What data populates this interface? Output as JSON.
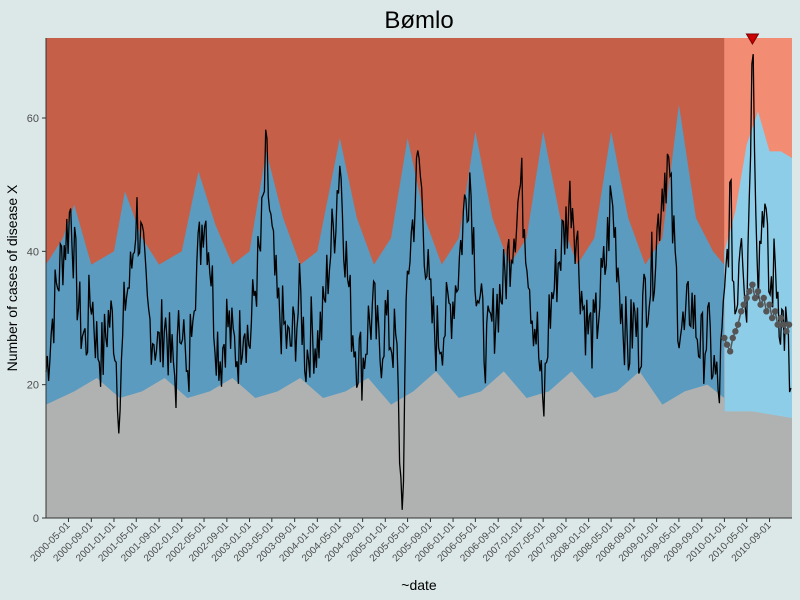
{
  "chart_data": {
    "type": "area",
    "title": "Bømlo",
    "xlabel": "~date",
    "ylabel": "Number of cases of disease X",
    "x_range": [
      "2000-01-01",
      "2010-12-31"
    ],
    "ylim": [
      0,
      72
    ],
    "y_ticks": [
      0,
      20,
      40,
      60
    ],
    "x_ticks": [
      "2000-05-01",
      "2000-09-01",
      "2001-01-01",
      "2001-05-01",
      "2001-09-01",
      "2002-01-01",
      "2002-05-01",
      "2002-09-01",
      "2003-01-01",
      "2003-05-01",
      "2003-09-01",
      "2004-01-01",
      "2004-05-01",
      "2004-09-01",
      "2005-01-01",
      "2005-05-01",
      "2005-09-01",
      "2006-01-01",
      "2006-05-01",
      "2006-09-01",
      "2007-01-01",
      "2007-05-01",
      "2007-09-01",
      "2008-01-01",
      "2008-05-01",
      "2008-09-01",
      "2009-01-01",
      "2009-05-01",
      "2009-09-01",
      "2010-01-01",
      "2010-05-01",
      "2010-09-01"
    ],
    "forecast_start": "2010-01-01",
    "forecast_end": "2010-12-31",
    "bands": {
      "baseline_low": [
        [
          "2000-01-01",
          17
        ],
        [
          "2000-06-01",
          19
        ],
        [
          "2000-10-01",
          21
        ],
        [
          "2001-02-01",
          18
        ],
        [
          "2001-06-01",
          19
        ],
        [
          "2001-10-01",
          21
        ],
        [
          "2002-02-01",
          18
        ],
        [
          "2002-06-01",
          19
        ],
        [
          "2002-10-01",
          21
        ],
        [
          "2003-02-01",
          18
        ],
        [
          "2003-06-01",
          19
        ],
        [
          "2003-10-01",
          21
        ],
        [
          "2004-02-01",
          18
        ],
        [
          "2004-06-01",
          19
        ],
        [
          "2004-10-01",
          21
        ],
        [
          "2005-02-01",
          17
        ],
        [
          "2005-06-01",
          19
        ],
        [
          "2005-10-01",
          22
        ],
        [
          "2006-02-01",
          18
        ],
        [
          "2006-06-01",
          19
        ],
        [
          "2006-10-01",
          22
        ],
        [
          "2007-02-01",
          18
        ],
        [
          "2007-06-01",
          19
        ],
        [
          "2007-10-01",
          22
        ],
        [
          "2008-02-01",
          18
        ],
        [
          "2008-06-01",
          19
        ],
        [
          "2008-10-01",
          22
        ],
        [
          "2009-02-01",
          17
        ],
        [
          "2009-06-01",
          19
        ],
        [
          "2009-10-01",
          20
        ],
        [
          "2009-12-31",
          18
        ],
        [
          "2010-01-01",
          16
        ],
        [
          "2010-06-01",
          16
        ],
        [
          "2010-12-31",
          15
        ]
      ],
      "baseline_high": [
        [
          "2000-01-01",
          38
        ],
        [
          "2000-04-01",
          42
        ],
        [
          "2000-06-01",
          47
        ],
        [
          "2000-09-01",
          38
        ],
        [
          "2001-01-01",
          40
        ],
        [
          "2001-03-01",
          49
        ],
        [
          "2001-06-01",
          42
        ],
        [
          "2001-09-01",
          38
        ],
        [
          "2002-01-01",
          40
        ],
        [
          "2002-04-01",
          52
        ],
        [
          "2002-07-01",
          44
        ],
        [
          "2002-10-01",
          38
        ],
        [
          "2003-01-01",
          40
        ],
        [
          "2003-04-01",
          55
        ],
        [
          "2003-07-01",
          45
        ],
        [
          "2003-10-01",
          38
        ],
        [
          "2004-01-01",
          40
        ],
        [
          "2004-05-01",
          57
        ],
        [
          "2004-08-01",
          45
        ],
        [
          "2004-11-01",
          38
        ],
        [
          "2005-02-01",
          42
        ],
        [
          "2005-05-01",
          57
        ],
        [
          "2005-08-01",
          45
        ],
        [
          "2005-11-01",
          38
        ],
        [
          "2006-02-01",
          42
        ],
        [
          "2006-05-01",
          58
        ],
        [
          "2006-08-01",
          45
        ],
        [
          "2006-11-01",
          38
        ],
        [
          "2007-02-01",
          42
        ],
        [
          "2007-05-01",
          58
        ],
        [
          "2007-08-01",
          45
        ],
        [
          "2007-11-01",
          38
        ],
        [
          "2008-02-01",
          42
        ],
        [
          "2008-05-01",
          58
        ],
        [
          "2008-08-01",
          45
        ],
        [
          "2008-11-01",
          38
        ],
        [
          "2009-02-01",
          42
        ],
        [
          "2009-05-01",
          62
        ],
        [
          "2009-08-01",
          45
        ],
        [
          "2009-11-01",
          40
        ],
        [
          "2009-12-31",
          38
        ]
      ],
      "forecast_high": [
        [
          "2010-01-01",
          40
        ],
        [
          "2010-03-01",
          46
        ],
        [
          "2010-05-01",
          56
        ],
        [
          "2010-07-01",
          61
        ],
        [
          "2010-09-01",
          55
        ],
        [
          "2010-11-01",
          55
        ],
        [
          "2010-12-31",
          54
        ]
      ]
    },
    "observed": [
      [
        "2000-01-01",
        22
      ],
      [
        "2000-02-01",
        29
      ],
      [
        "2000-03-01",
        35
      ],
      [
        "2000-04-01",
        40
      ],
      [
        "2000-05-01",
        44
      ],
      [
        "2000-05-15",
        47
      ],
      [
        "2000-06-01",
        39
      ],
      [
        "2000-07-01",
        30
      ],
      [
        "2000-08-01",
        26
      ],
      [
        "2000-09-01",
        34
      ],
      [
        "2000-10-01",
        26
      ],
      [
        "2000-11-01",
        24
      ],
      [
        "2000-12-01",
        30
      ],
      [
        "2001-01-01",
        29
      ],
      [
        "2001-02-01",
        16
      ],
      [
        "2001-03-01",
        33
      ],
      [
        "2001-04-01",
        36
      ],
      [
        "2001-05-01",
        46
      ],
      [
        "2001-06-01",
        40
      ],
      [
        "2001-07-01",
        30
      ],
      [
        "2001-08-01",
        28
      ],
      [
        "2001-09-01",
        25
      ],
      [
        "2001-10-01",
        30
      ],
      [
        "2001-11-01",
        24
      ],
      [
        "2001-12-01",
        21
      ],
      [
        "2002-01-01",
        33
      ],
      [
        "2002-02-01",
        17
      ],
      [
        "2002-03-01",
        35
      ],
      [
        "2002-04-01",
        39
      ],
      [
        "2002-05-01",
        47
      ],
      [
        "2002-06-01",
        40
      ],
      [
        "2002-07-01",
        28
      ],
      [
        "2002-08-01",
        24
      ],
      [
        "2002-09-01",
        30
      ],
      [
        "2002-10-01",
        26
      ],
      [
        "2002-11-01",
        25
      ],
      [
        "2002-12-01",
        31
      ],
      [
        "2003-01-01",
        26
      ],
      [
        "2003-02-01",
        35
      ],
      [
        "2003-03-01",
        40
      ],
      [
        "2003-04-01",
        54
      ],
      [
        "2003-05-01",
        41
      ],
      [
        "2003-06-01",
        31
      ],
      [
        "2003-07-01",
        29
      ],
      [
        "2003-08-01",
        25
      ],
      [
        "2003-09-01",
        28
      ],
      [
        "2003-10-01",
        33
      ],
      [
        "2003-11-01",
        24
      ],
      [
        "2003-12-01",
        28
      ],
      [
        "2004-01-01",
        26
      ],
      [
        "2004-02-01",
        30
      ],
      [
        "2004-03-01",
        38
      ],
      [
        "2004-04-01",
        44
      ],
      [
        "2004-05-01",
        54
      ],
      [
        "2004-06-01",
        40
      ],
      [
        "2004-07-01",
        30
      ],
      [
        "2004-08-01",
        25
      ],
      [
        "2004-09-01",
        23
      ],
      [
        "2004-10-01",
        29
      ],
      [
        "2004-11-01",
        31
      ],
      [
        "2004-12-01",
        24
      ],
      [
        "2005-01-01",
        30
      ],
      [
        "2005-02-01",
        27
      ],
      [
        "2005-03-01",
        26
      ],
      [
        "2005-04-01",
        0
      ],
      [
        "2005-05-01",
        37
      ],
      [
        "2005-06-01",
        45
      ],
      [
        "2005-07-01",
        54
      ],
      [
        "2005-08-01",
        42
      ],
      [
        "2005-09-01",
        31
      ],
      [
        "2005-10-01",
        27
      ],
      [
        "2005-11-01",
        28
      ],
      [
        "2005-12-01",
        30
      ],
      [
        "2006-01-01",
        33
      ],
      [
        "2006-02-01",
        38
      ],
      [
        "2006-03-01",
        46
      ],
      [
        "2006-04-01",
        52
      ],
      [
        "2006-05-01",
        38
      ],
      [
        "2006-06-01",
        30
      ],
      [
        "2006-07-01",
        25
      ],
      [
        "2006-08-01",
        29
      ],
      [
        "2006-09-01",
        33
      ],
      [
        "2006-10-01",
        35
      ],
      [
        "2006-11-01",
        40
      ],
      [
        "2006-12-01",
        45
      ],
      [
        "2007-01-01",
        50
      ],
      [
        "2007-02-01",
        42
      ],
      [
        "2007-03-01",
        32
      ],
      [
        "2007-04-01",
        27
      ],
      [
        "2007-05-01",
        15
      ],
      [
        "2007-06-01",
        30
      ],
      [
        "2007-07-01",
        35
      ],
      [
        "2007-08-01",
        40
      ],
      [
        "2007-09-01",
        44
      ],
      [
        "2007-10-01",
        49
      ],
      [
        "2007-11-01",
        41
      ],
      [
        "2007-12-01",
        32
      ],
      [
        "2008-01-01",
        28
      ],
      [
        "2008-02-01",
        27
      ],
      [
        "2008-03-01",
        33
      ],
      [
        "2008-04-01",
        38
      ],
      [
        "2008-05-01",
        48
      ],
      [
        "2008-06-01",
        40
      ],
      [
        "2008-07-01",
        31
      ],
      [
        "2008-08-01",
        25
      ],
      [
        "2008-09-01",
        30
      ],
      [
        "2008-10-01",
        26
      ],
      [
        "2008-11-01",
        34
      ],
      [
        "2008-12-01",
        36
      ],
      [
        "2009-01-01",
        42
      ],
      [
        "2009-02-01",
        50
      ],
      [
        "2009-03-01",
        54
      ],
      [
        "2009-04-01",
        42
      ],
      [
        "2009-05-01",
        30
      ],
      [
        "2009-06-01",
        27
      ],
      [
        "2009-07-01",
        33
      ],
      [
        "2009-08-01",
        29
      ],
      [
        "2009-09-01",
        25
      ],
      [
        "2009-10-01",
        28
      ],
      [
        "2009-11-01",
        23
      ],
      [
        "2009-12-01",
        18
      ],
      [
        "2010-01-01",
        31
      ],
      [
        "2010-02-01",
        48
      ],
      [
        "2010-03-01",
        30
      ],
      [
        "2010-04-01",
        46
      ],
      [
        "2010-05-01",
        32
      ],
      [
        "2010-06-01",
        72
      ],
      [
        "2010-07-01",
        37
      ],
      [
        "2010-08-01",
        49
      ],
      [
        "2010-09-01",
        33
      ],
      [
        "2010-10-01",
        38
      ],
      [
        "2010-11-01",
        30
      ],
      [
        "2010-12-01",
        28
      ],
      [
        "2010-12-31",
        15
      ]
    ],
    "expected_2010": [
      [
        "2010-01-01",
        27
      ],
      [
        "2010-01-15",
        26
      ],
      [
        "2010-02-01",
        25
      ],
      [
        "2010-02-15",
        27
      ],
      [
        "2010-03-01",
        28
      ],
      [
        "2010-03-15",
        29
      ],
      [
        "2010-04-01",
        31
      ],
      [
        "2010-04-15",
        32
      ],
      [
        "2010-05-01",
        33
      ],
      [
        "2010-05-15",
        34
      ],
      [
        "2010-06-01",
        35
      ],
      [
        "2010-06-15",
        33
      ],
      [
        "2010-07-01",
        34
      ],
      [
        "2010-07-15",
        32
      ],
      [
        "2010-08-01",
        33
      ],
      [
        "2010-08-15",
        31
      ],
      [
        "2010-09-01",
        32
      ],
      [
        "2010-09-15",
        30
      ],
      [
        "2010-10-01",
        31
      ],
      [
        "2010-10-15",
        29
      ],
      [
        "2010-11-01",
        30
      ],
      [
        "2010-11-15",
        29
      ],
      [
        "2010-12-01",
        28
      ],
      [
        "2010-12-15",
        29
      ]
    ],
    "alarm": {
      "x": "2010-06-01",
      "y": 72
    },
    "colors": {
      "background": "#dce8e8",
      "alarm_zone": "#c65f48",
      "alarm_zone_forecast": "#f28c73",
      "normal_band": "#5a9bbf",
      "normal_band_forecast": "#8ecde8",
      "baseline": "#b0b2b2",
      "observed_line": "#000000",
      "expected_points": "#555555",
      "alarm_marker": "#cc0000"
    }
  }
}
